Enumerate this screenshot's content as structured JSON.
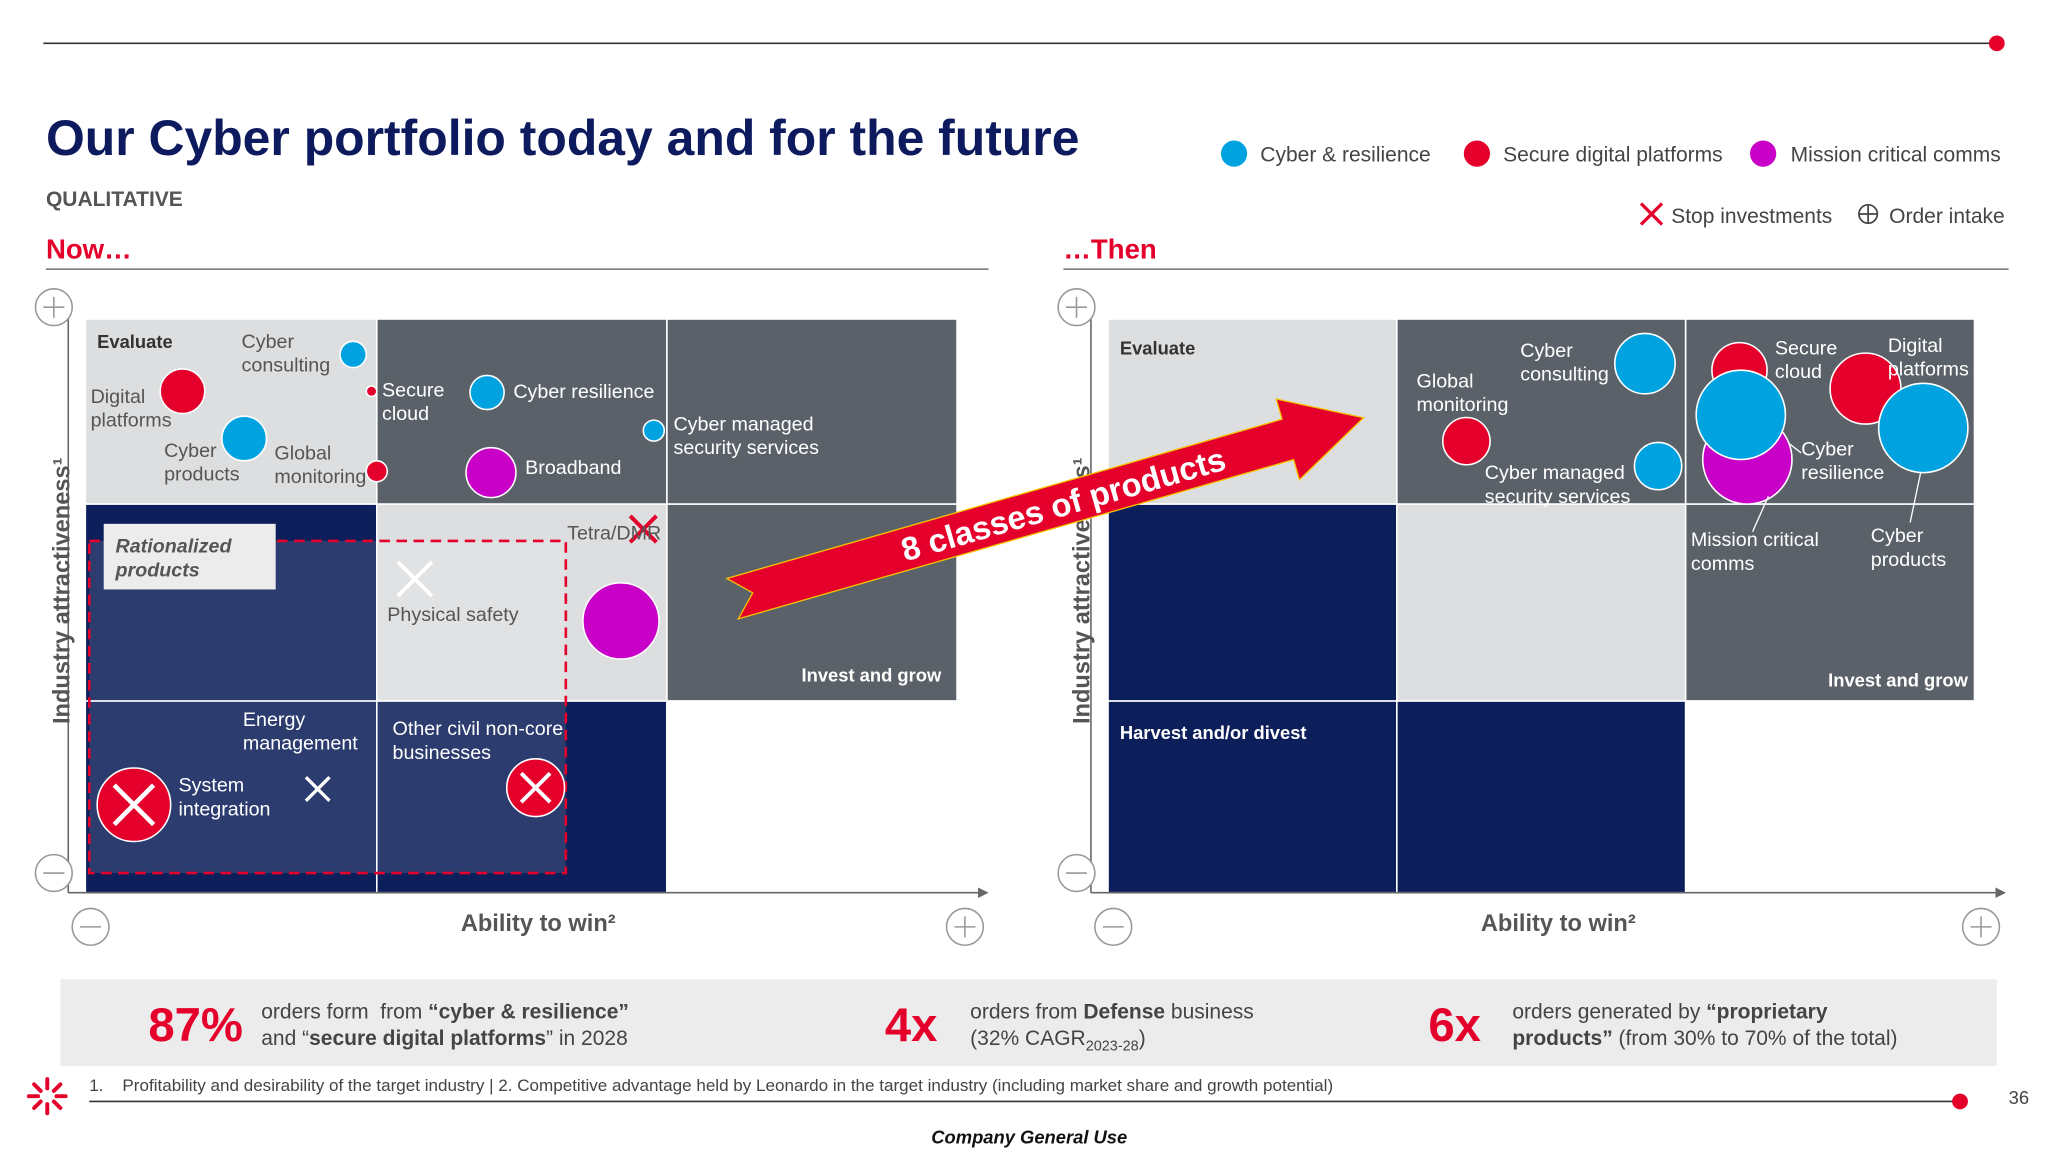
{
  "header": {
    "title": "Our Cyber portfolio today and for the future",
    "subtitle": "QUALITATIVE"
  },
  "legend": {
    "items": [
      {
        "label": "Cyber & resilience",
        "color": "#00a3e0"
      },
      {
        "label": "Secure digital platforms",
        "color": "#e4002b"
      },
      {
        "label": "Mission critical comms",
        "color": "#c800c8"
      }
    ],
    "markers": [
      "Stop investments",
      "Order intake"
    ]
  },
  "now": {
    "heading": "Now…",
    "y_axis": "Industry attractiveness¹",
    "x_axis": "Ability to win²",
    "labels": [
      "Evaluate",
      "Cyber\nconsulting",
      "Digital\nplatforms",
      "Cyber\nproducts",
      "Global\nmonitoring",
      "Secure\ncloud",
      "Cyber resilience",
      "Broadband",
      "Cyber managed\nsecurity services",
      "Rationalized\nproducts",
      "Tetra/DMR",
      "Physical safety",
      "Invest and grow",
      "Energy\nmanagement",
      "System\nintegration",
      "Other civil non-core\nbusinesses"
    ]
  },
  "then": {
    "heading": "…Then",
    "y_axis": "Industry attractiveness¹",
    "x_axis": "Ability to win²",
    "labels": [
      "Evaluate",
      "Global\nmonitoring",
      "Cyber\nconsulting",
      "Cyber managed\nsecurity services",
      "Secure\ncloud",
      "Digital\nplatforms",
      "Cyber\nresilience",
      "Mission critical\ncomms",
      "Cyber\nproducts",
      "Invest and grow",
      "Harvest and/or divest"
    ]
  },
  "arrow": "8 classes of products",
  "stats": [
    {
      "value": "87%",
      "lines": [
        [
          {
            "text": "orders form  from "
          },
          {
            "text": "“cyber & resilience”",
            "bold": true
          }
        ],
        [
          {
            "text": "and “"
          },
          {
            "text": "secure digital platforms",
            "bold": true
          },
          {
            "text": "” in 2028"
          }
        ]
      ]
    },
    {
      "value": "4x",
      "lines": [
        [
          {
            "text": "orders from "
          },
          {
            "text": "Defense",
            "bold": true
          },
          {
            "text": " business"
          }
        ],
        [
          {
            "text": "(32% CAGR"
          },
          {
            "text": "2023-28",
            "sub": true
          },
          {
            "text": ")"
          }
        ]
      ]
    },
    {
      "value": "6x",
      "lines": [
        [
          {
            "text": "orders generated by "
          },
          {
            "text": "“proprietary",
            "bold": true
          }
        ],
        [
          {
            "text": "products”",
            "bold": true
          },
          {
            "text": " (from 30% to 70% of the total)"
          }
        ]
      ]
    }
  ],
  "footnote": "1.    Profitability and desirability of the target industry | 2. Competitive advantage held by Leonardo in the target industry (including market share and growth potential)",
  "page_number": "36",
  "classification": "Company General Use"
}
